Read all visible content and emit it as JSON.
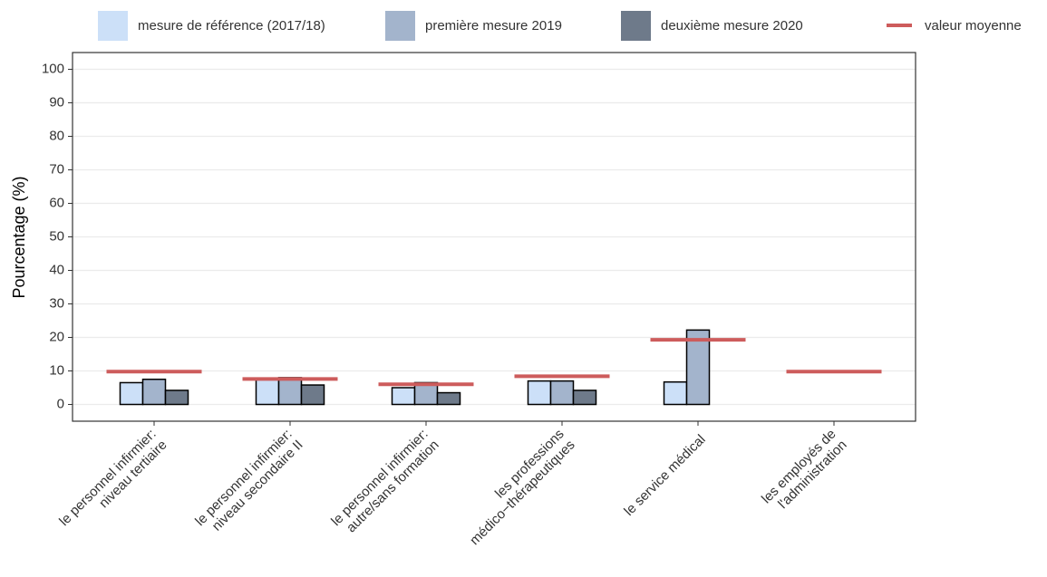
{
  "chart_data": {
    "type": "bar",
    "y_label": "Pourcentage (%)",
    "categories": [
      "le personnel infirmier:\nniveau tertiaire",
      "le personnel infirmier:\nniveau secondaire II",
      "le personnel infirmier:\nautre/sans formation",
      "les professions\nmédico−thérapeutiques",
      "le service médical",
      "les employés de\nl'administration"
    ],
    "series": [
      {
        "name": "mesure de référence (2017/18)",
        "color": "#cce0f8",
        "values": [
          6.5,
          7.5,
          5,
          7,
          6.7,
          0
        ]
      },
      {
        "name": "première mesure 2019",
        "color": "#a3b4cc",
        "values": [
          7.5,
          8,
          6.5,
          7,
          22.2,
          null
        ]
      },
      {
        "name": "deuxième mesure 2020",
        "color": "#6e7a8a",
        "values": [
          4.2,
          5.8,
          3.5,
          4.2,
          null,
          null
        ]
      }
    ],
    "mean": {
      "name": "valeur moyenne",
      "color": "#cd5c5c",
      "values": [
        9.8,
        7.6,
        6.0,
        8.4,
        19.3,
        9.8
      ]
    },
    "ylim": [
      -5,
      105
    ],
    "yticks": [
      0,
      10,
      20,
      30,
      40,
      50,
      60,
      70,
      80,
      90,
      100
    ],
    "grid": true
  }
}
